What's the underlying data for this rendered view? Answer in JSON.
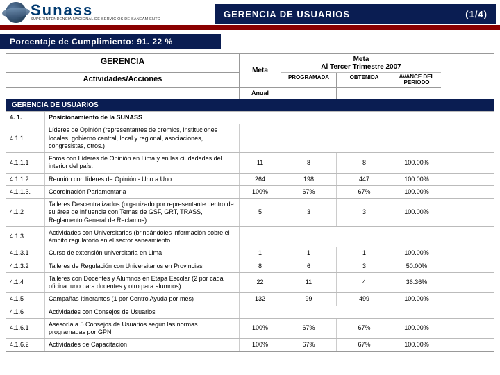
{
  "logo": {
    "brand": "Sunass",
    "subtitle": "SUPERINTENDENCIA NACIONAL DE SERVICIOS DE SANEAMIENTO"
  },
  "header": {
    "title": "GERENCIA DE USUARIOS",
    "page": "(1/4)"
  },
  "compliance": {
    "label": "Porcentaje de Cumplimiento: 91. 22 %"
  },
  "colors": {
    "navy": "#0a1d52",
    "dark_red": "#8a0000",
    "border": "#999999"
  },
  "table": {
    "hdr": {
      "gerencia": "GERENCIA",
      "actividades": "Actividades/Acciones",
      "meta": "Meta",
      "meta_trim": "Meta\nAl Tercer Trimestre 2007",
      "anual": "Anual",
      "programada": "PROGRAMADA",
      "obtenida": "OBTENIDA",
      "avance": "AVANCE DEL PERIODO"
    },
    "band": "GERENCIA DE USUARIOS",
    "rows": [
      {
        "id": "4. 1.",
        "label": "Posicionamiento de la SUNASS",
        "bold": true,
        "span": true
      },
      {
        "id": "4.1.1.",
        "label": "Líderes de Opinión (representantes de gremios, instituciones locales, gobierno central, local y regional, asociaciones, congresistas, otros.)",
        "blankvals": true
      },
      {
        "id": "4.1.1.1",
        "label": "Foros con Líderes de Opinión en Lima y en las ciudadades del interior del país.",
        "anual": "11",
        "prog": "8",
        "obt": "8",
        "av": "100.00%"
      },
      {
        "id": "4.1.1.2",
        "label": "Reunión con líderes de Opinión - Uno a Uno",
        "anual": "264",
        "prog": "198",
        "obt": "447",
        "av": "100.00%"
      },
      {
        "id": "4.1.1.3.",
        "label": "Coordinación Parlamentaria",
        "anual": "100%",
        "prog": "67%",
        "obt": "67%",
        "av": "100.00%"
      },
      {
        "id": "4.1.2",
        "label": "Talleres Descentralizados (organizado por representante dentro de su área de influencia con Temas de GSF, GRT, TRASS, Reglamento General de Reclamos)",
        "anual": "5",
        "prog": "3",
        "obt": "3",
        "av": "100.00%"
      },
      {
        "id": "4.1.3",
        "label": "Actividades con Universitarios (brindándoles información sobre el ámbito regulatorio en el sector saneamiento",
        "blankvals": true
      },
      {
        "id": "4.1.3.1",
        "label": "Curso de extensión universitaria en Lima",
        "anual": "1",
        "prog": "1",
        "obt": "1",
        "av": "100.00%"
      },
      {
        "id": "4.1.3.2",
        "label": "Talleres de Regulación con Universitarios en Provincias",
        "anual": "8",
        "prog": "6",
        "obt": "3",
        "av": "50.00%"
      },
      {
        "id": "4.1.4",
        "label": "Talleres con Docentes y Alumnos en Etapa Escolar (2 por cada oficina: uno para docentes y otro para alumnos)",
        "anual": "22",
        "prog": "11",
        "obt": "4",
        "av": "36.36%"
      },
      {
        "id": "4.1.5",
        "label": "Campañas Itinerantes (1 por Centro Ayuda por mes)",
        "anual": "132",
        "prog": "99",
        "obt": "499",
        "av": "100.00%"
      },
      {
        "id": "4.1.6",
        "label": "Actividades con Consejos de Usuarios",
        "blankvals": true
      },
      {
        "id": "4.1.6.1",
        "label": "Asesoría a 5 Consejos de Usuarios según las normas programadas por GPN",
        "anual": "100%",
        "prog": "67%",
        "obt": "67%",
        "av": "100.00%"
      },
      {
        "id": "4.1.6.2",
        "label": "Actividades de Capacitación",
        "anual": "100%",
        "prog": "67%",
        "obt": "67%",
        "av": "100.00%"
      }
    ]
  }
}
